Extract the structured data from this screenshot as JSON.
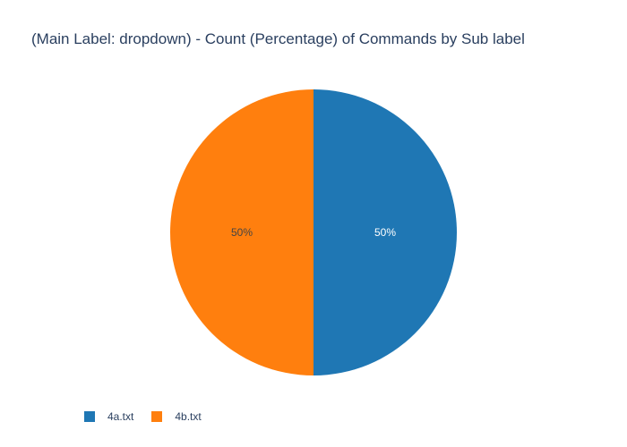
{
  "chart_data": {
    "type": "pie",
    "title": "(Main Label: dropdown) - Count (Percentage) of Commands by Sub label",
    "labels": [
      "4a.txt",
      "4b.txt"
    ],
    "values": [
      50,
      50
    ],
    "text": [
      "50%",
      "50%"
    ],
    "colors": [
      "#1f77b4",
      "#ff7f0e"
    ],
    "legend_position": "bottom-left"
  }
}
